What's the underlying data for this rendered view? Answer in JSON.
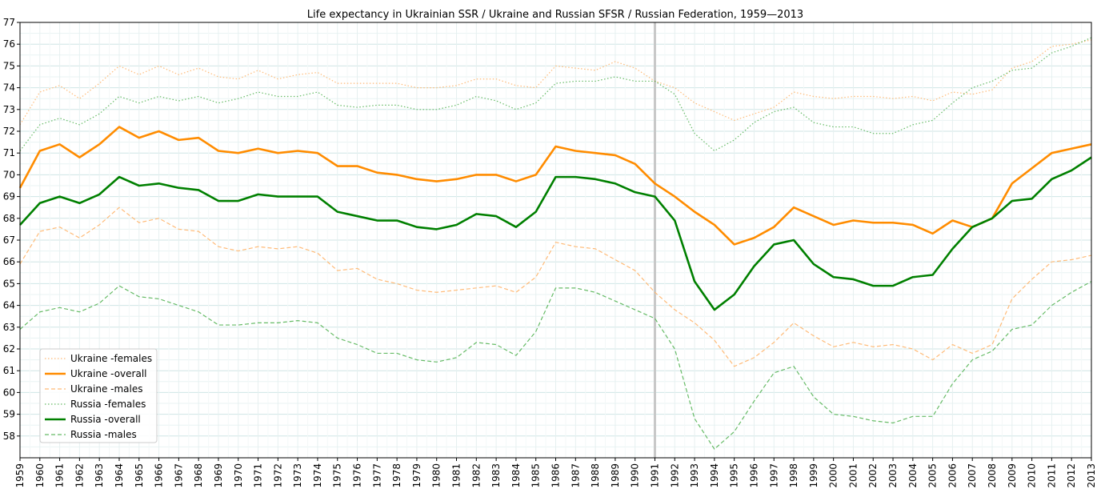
{
  "chart_data": {
    "type": "line",
    "title": "Life expectancy in Ukrainian SSR / Ukraine and Russian SFSR / Russian Federation, 1959—2013",
    "xlabel": "",
    "ylabel": "",
    "x": [
      1959,
      1960,
      1961,
      1962,
      1963,
      1964,
      1965,
      1966,
      1967,
      1968,
      1969,
      1970,
      1971,
      1972,
      1973,
      1974,
      1975,
      1976,
      1977,
      1978,
      1979,
      1980,
      1981,
      1982,
      1983,
      1984,
      1985,
      1986,
      1987,
      1988,
      1989,
      1990,
      1991,
      1992,
      1993,
      1994,
      1995,
      1996,
      1997,
      1998,
      1999,
      2000,
      2001,
      2002,
      2003,
      2004,
      2005,
      2006,
      2007,
      2008,
      2009,
      2010,
      2011,
      2012,
      2013
    ],
    "xlim": [
      1959,
      2013
    ],
    "ylim": [
      57,
      77
    ],
    "yticks": [
      58,
      59,
      60,
      61,
      62,
      63,
      64,
      65,
      66,
      67,
      68,
      69,
      70,
      71,
      72,
      73,
      74,
      75,
      76,
      77
    ],
    "grid": true,
    "vline_x": 1991,
    "legend_position": "lower-left",
    "series": [
      {
        "name": "Ukraine -females",
        "color": "#ffbb78",
        "style": "dotted",
        "width": "thin",
        "values": [
          72.3,
          73.8,
          74.1,
          73.5,
          74.2,
          75.0,
          74.6,
          75.0,
          74.6,
          74.9,
          74.5,
          74.4,
          74.8,
          74.4,
          74.6,
          74.7,
          74.2,
          74.2,
          74.2,
          74.2,
          74.0,
          74.0,
          74.1,
          74.4,
          74.4,
          74.1,
          74.0,
          75.0,
          74.9,
          74.8,
          75.2,
          74.9,
          74.3,
          74.0,
          73.3,
          72.9,
          72.5,
          72.8,
          73.1,
          73.8,
          73.6,
          73.5,
          73.6,
          73.6,
          73.5,
          73.6,
          73.4,
          73.8,
          73.7,
          73.9,
          74.9,
          75.2,
          75.9,
          76.0,
          76.2
        ]
      },
      {
        "name": "Ukraine -overall",
        "color": "#ff8c00",
        "style": "solid",
        "width": "thick",
        "values": [
          69.4,
          71.1,
          71.4,
          70.8,
          71.4,
          72.2,
          71.7,
          72.0,
          71.6,
          71.7,
          71.1,
          71.0,
          71.2,
          71.0,
          71.1,
          71.0,
          70.4,
          70.4,
          70.1,
          70.0,
          69.8,
          69.7,
          69.8,
          70.0,
          70.0,
          69.7,
          70.0,
          71.3,
          71.1,
          71.0,
          70.9,
          70.5,
          69.6,
          69.0,
          68.3,
          67.7,
          66.8,
          67.1,
          67.6,
          68.5,
          68.1,
          67.7,
          67.9,
          67.8,
          67.8,
          67.7,
          67.3,
          67.9,
          67.6,
          68.0,
          69.6,
          70.3,
          71.0,
          71.2,
          71.4
        ]
      },
      {
        "name": "Ukraine -males",
        "color": "#ffbb78",
        "style": "dashed",
        "width": "thin",
        "values": [
          65.9,
          67.4,
          67.6,
          67.1,
          67.7,
          68.5,
          67.8,
          68.0,
          67.5,
          67.4,
          66.7,
          66.5,
          66.7,
          66.6,
          66.7,
          66.4,
          65.6,
          65.7,
          65.2,
          65.0,
          64.7,
          64.6,
          64.7,
          64.8,
          64.9,
          64.6,
          65.3,
          66.9,
          66.7,
          66.6,
          66.1,
          65.6,
          64.6,
          63.8,
          63.2,
          62.4,
          61.2,
          61.6,
          62.3,
          63.2,
          62.6,
          62.1,
          62.3,
          62.1,
          62.2,
          62.0,
          61.5,
          62.2,
          61.8,
          62.2,
          64.3,
          65.2,
          66.0,
          66.1,
          66.3
        ]
      },
      {
        "name": "Russia -females",
        "color": "#66bb66",
        "style": "dotted",
        "width": "thin",
        "values": [
          71.1,
          72.3,
          72.6,
          72.3,
          72.8,
          73.6,
          73.3,
          73.6,
          73.4,
          73.6,
          73.3,
          73.5,
          73.8,
          73.6,
          73.6,
          73.8,
          73.2,
          73.1,
          73.2,
          73.2,
          73.0,
          73.0,
          73.2,
          73.6,
          73.4,
          73.0,
          73.3,
          74.2,
          74.3,
          74.3,
          74.5,
          74.3,
          74.3,
          73.7,
          71.9,
          71.1,
          71.6,
          72.4,
          72.9,
          73.1,
          72.4,
          72.2,
          72.2,
          71.9,
          71.9,
          72.3,
          72.5,
          73.3,
          74.0,
          74.3,
          74.8,
          74.9,
          75.6,
          75.9,
          76.3
        ]
      },
      {
        "name": "Russia -overall",
        "color": "#008000",
        "style": "solid",
        "width": "thick",
        "values": [
          67.7,
          68.7,
          69.0,
          68.7,
          69.1,
          69.9,
          69.5,
          69.6,
          69.4,
          69.3,
          68.8,
          68.8,
          69.1,
          69.0,
          69.0,
          69.0,
          68.3,
          68.1,
          67.9,
          67.9,
          67.6,
          67.5,
          67.7,
          68.2,
          68.1,
          67.6,
          68.3,
          69.9,
          69.9,
          69.8,
          69.6,
          69.2,
          69.0,
          67.9,
          65.1,
          63.8,
          64.5,
          65.8,
          66.8,
          67.0,
          65.9,
          65.3,
          65.2,
          64.9,
          64.9,
          65.3,
          65.4,
          66.6,
          67.6,
          68.0,
          68.8,
          68.9,
          69.8,
          70.2,
          70.8
        ]
      },
      {
        "name": "Russia -males",
        "color": "#66bb66",
        "style": "dashed",
        "width": "thin",
        "values": [
          62.9,
          63.7,
          63.9,
          63.7,
          64.1,
          64.9,
          64.4,
          64.3,
          64.0,
          63.7,
          63.1,
          63.1,
          63.2,
          63.2,
          63.3,
          63.2,
          62.5,
          62.2,
          61.8,
          61.8,
          61.5,
          61.4,
          61.6,
          62.3,
          62.2,
          61.7,
          62.8,
          64.8,
          64.8,
          64.6,
          64.2,
          63.8,
          63.4,
          62.0,
          58.8,
          57.4,
          58.2,
          59.6,
          60.9,
          61.2,
          59.8,
          59.0,
          58.9,
          58.7,
          58.6,
          58.9,
          58.9,
          60.4,
          61.5,
          61.9,
          62.9,
          63.1,
          64.0,
          64.6,
          65.1
        ]
      }
    ]
  }
}
